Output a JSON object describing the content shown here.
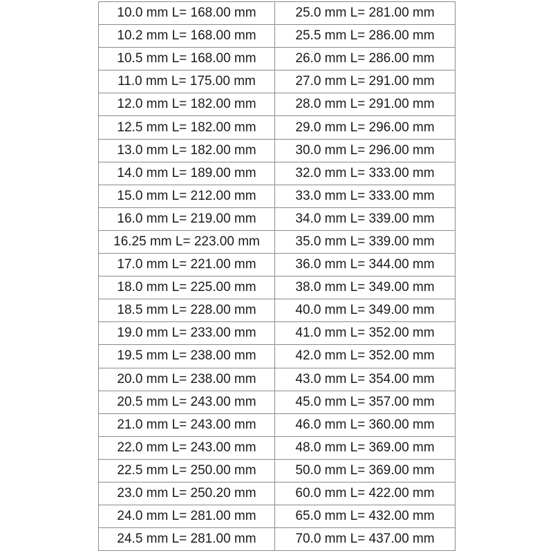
{
  "rows": [
    [
      "10.0 mm L= 168.00 mm",
      "25.0 mm L= 281.00 mm"
    ],
    [
      "10.2 mm L= 168.00 mm",
      "25.5 mm L= 286.00 mm"
    ],
    [
      "10.5 mm L= 168.00 mm",
      "26.0 mm L= 286.00 mm"
    ],
    [
      "11.0 mm L= 175.00 mm",
      "27.0 mm L= 291.00 mm"
    ],
    [
      "12.0 mm L= 182.00 mm",
      "28.0 mm L= 291.00 mm"
    ],
    [
      "12.5 mm L= 182.00 mm",
      "29.0 mm L= 296.00 mm"
    ],
    [
      "13.0 mm L= 182.00 mm",
      "30.0 mm L= 296.00 mm"
    ],
    [
      "14.0 mm L= 189.00 mm",
      "32.0 mm L= 333.00 mm"
    ],
    [
      "15.0 mm L= 212.00 mm",
      "33.0 mm L= 333.00 mm"
    ],
    [
      "16.0 mm L= 219.00 mm",
      "34.0 mm L= 339.00 mm"
    ],
    [
      "16.25 mm L= 223.00 mm",
      "35.0 mm L= 339.00 mm"
    ],
    [
      "17.0 mm L= 221.00 mm",
      "36.0 mm L= 344.00 mm"
    ],
    [
      "18.0 mm L= 225.00 mm",
      "38.0 mm L= 349.00 mm"
    ],
    [
      "18.5 mm L= 228.00 mm",
      "40.0 mm L= 349.00 mm"
    ],
    [
      "19.0 mm L= 233.00 mm",
      "41.0 mm L= 352.00 mm"
    ],
    [
      "19.5 mm L= 238.00 mm",
      "42.0 mm L= 352.00 mm"
    ],
    [
      "20.0 mm L= 238.00 mm",
      "43.0 mm L= 354.00 mm"
    ],
    [
      "20.5 mm L= 243.00 mm",
      "45.0 mm L= 357.00 mm"
    ],
    [
      "21.0 mm L= 243.00 mm",
      "46.0 mm L= 360.00 mm"
    ],
    [
      "22.0 mm L= 243.00 mm",
      "48.0 mm L= 369.00 mm"
    ],
    [
      "22.5 mm L= 250.00 mm",
      "50.0 mm L= 369.00 mm"
    ],
    [
      "23.0 mm L= 250.20 mm",
      "60.0 mm L= 422.00 mm"
    ],
    [
      "24.0 mm L= 281.00 mm",
      "65.0 mm L= 432.00 mm"
    ],
    [
      "24.5 mm L= 281.00 mm",
      "70.0 mm L= 437.00 mm"
    ]
  ]
}
